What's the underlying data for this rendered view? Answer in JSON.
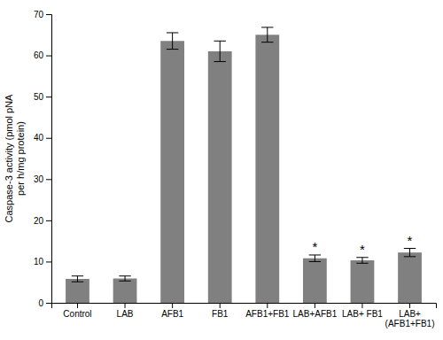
{
  "chart_data": {
    "type": "bar",
    "categories": [
      "Control",
      "LAB",
      "AFB1",
      "FB1",
      "AFB1+FB1",
      "LAB+AFB1",
      "LAB+ FB1",
      "LAB+\n(AFB1+FB1)"
    ],
    "values": [
      5.8,
      5.9,
      63.5,
      61.0,
      65.0,
      10.8,
      10.3,
      12.2
    ],
    "errors": [
      0.7,
      0.6,
      2.0,
      2.5,
      1.8,
      0.8,
      0.7,
      1.0
    ],
    "ylabel": "Caspase-3 activity (pmol pNA\nper h/mg protein)",
    "ylim": [
      0,
      70
    ],
    "yticks": [
      0,
      10,
      20,
      30,
      40,
      50,
      60,
      70
    ],
    "color": "#808080",
    "grid": false,
    "annotations": [
      {
        "x": "LAB+AFB1",
        "text": "*"
      },
      {
        "x": "LAB+ FB1",
        "text": "*"
      },
      {
        "x": "LAB+\n(AFB1+FB1)",
        "text": "*"
      }
    ]
  }
}
